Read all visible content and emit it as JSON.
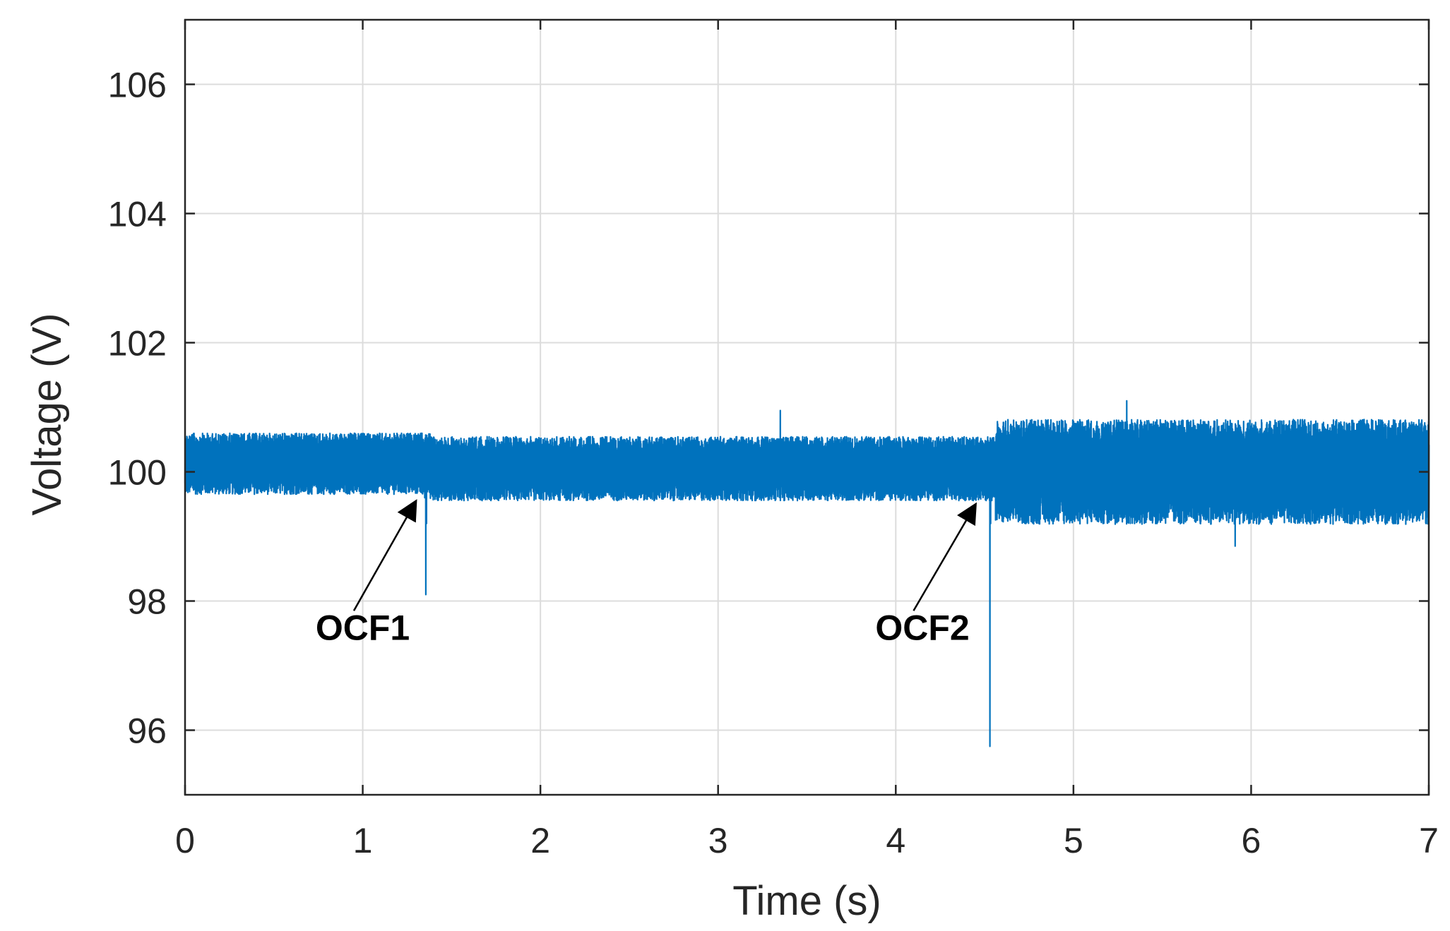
{
  "chart_data": {
    "type": "line",
    "xlabel": "Time (s)",
    "ylabel": "Voltage (V)",
    "xlim": [
      0,
      7
    ],
    "ylim": [
      95,
      107
    ],
    "xticks": [
      "0",
      "1",
      "2",
      "3",
      "4",
      "5",
      "6",
      "7"
    ],
    "yticks": [
      "96",
      "98",
      "100",
      "102",
      "104",
      "106"
    ],
    "grid": true,
    "series": [
      {
        "color": "#0072BD",
        "segments": [
          {
            "x": [
              0,
              1.34
            ],
            "mean": 100.1,
            "low": 99.6,
            "high": 100.65
          },
          {
            "x": [
              1.38,
              4.5
            ],
            "mean": 100.05,
            "low": 99.5,
            "high": 100.6
          },
          {
            "x": [
              4.56,
              7.0
            ],
            "mean": 99.95,
            "low": 99.1,
            "high": 100.9
          }
        ],
        "dips": [
          {
            "x": 1.355,
            "min": 98.1
          },
          {
            "x": 4.53,
            "min": 95.75
          }
        ],
        "spikes": [
          {
            "x": 3.35,
            "max": 100.95
          },
          {
            "x": 5.3,
            "max": 101.1
          },
          {
            "x": 5.91,
            "min": 98.85
          }
        ]
      }
    ],
    "annotations": [
      {
        "text": "OCF1",
        "x": 1.0,
        "y": 97.4,
        "arrow_from": [
          0.95,
          97.85
        ],
        "arrow_to": [
          1.3,
          99.55
        ]
      },
      {
        "text": "OCF2",
        "x": 4.15,
        "y": 97.4,
        "arrow_from": [
          4.1,
          97.85
        ],
        "arrow_to": [
          4.45,
          99.5
        ]
      }
    ]
  }
}
